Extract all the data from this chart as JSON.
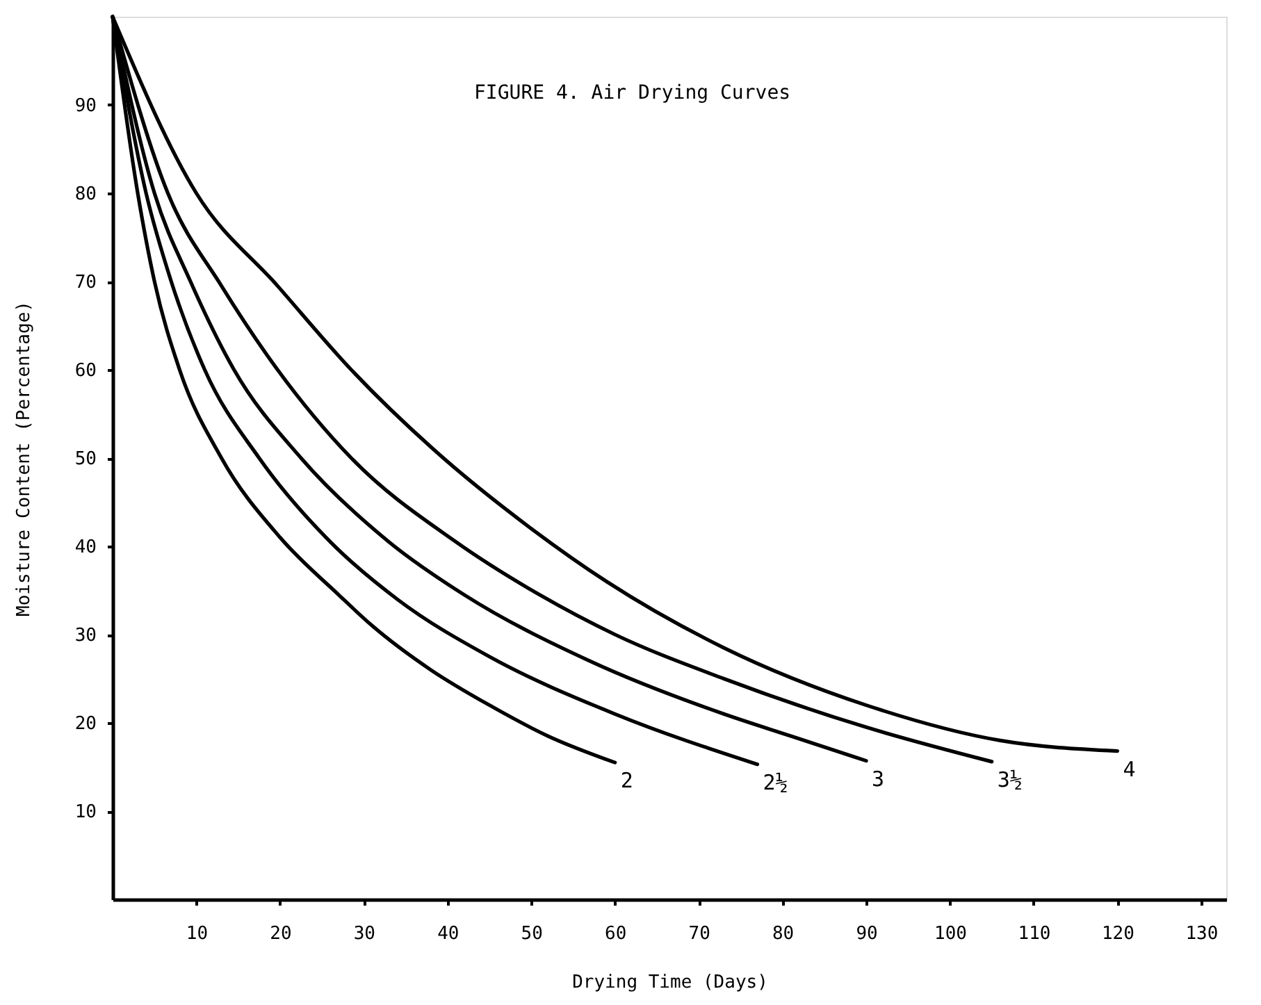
{
  "chart_data": {
    "type": "line",
    "title": "FIGURE 4.  Air Drying Curves",
    "xlabel": "Drying Time (Days)",
    "ylabel": "Moisture Content (Percentage)",
    "xlim": [
      0,
      133
    ],
    "xticks": [
      10,
      20,
      30,
      40,
      50,
      60,
      70,
      80,
      90,
      100,
      110,
      120,
      130
    ],
    "ylim": [
      0,
      100
    ],
    "yticks": [
      10,
      20,
      30,
      40,
      50,
      60,
      70,
      80,
      90
    ],
    "grid": false,
    "legend": false,
    "marker": "none",
    "line_style": "solid",
    "series": [
      {
        "name": "2",
        "color": "#000000",
        "x": [
          0,
          3,
          5,
          8,
          13,
          20,
          27,
          31,
          38,
          45,
          52,
          60
        ],
        "values": [
          100,
          80,
          70,
          60,
          50,
          41,
          34.5,
          31,
          26,
          22,
          18.5,
          15.5
        ]
      },
      {
        "name": "2½",
        "color": "#000000",
        "x": [
          0,
          4,
          7,
          11,
          17.5,
          26,
          34,
          45,
          60,
          77
        ],
        "values": [
          100,
          80,
          70,
          60,
          50,
          40.5,
          34,
          27.5,
          21,
          15.3
        ]
      },
      {
        "name": "3",
        "color": "#000000",
        "x": [
          0,
          5,
          9.3,
          14.5,
          22.5,
          33,
          42,
          57,
          73,
          81,
          90
        ],
        "values": [
          100,
          80,
          70,
          60,
          50,
          40.5,
          34.5,
          27,
          21,
          18.5,
          15.7
        ]
      },
      {
        "name": "3½",
        "color": "#000000",
        "x": [
          0,
          6.6,
          13,
          19.7,
          28.5,
          41,
          51,
          60,
          73,
          90,
          105
        ],
        "values": [
          100,
          80,
          69.5,
          60,
          50,
          40.5,
          34.5,
          30,
          25,
          19.5,
          15.6
        ]
      },
      {
        "name": "4",
        "color": "#000000",
        "x": [
          0,
          10,
          19.7,
          28.5,
          38.3,
          50,
          59,
          73,
          90,
          106,
          120
        ],
        "values": [
          100,
          80,
          69.5,
          60,
          51,
          42,
          36,
          28.5,
          22,
          18,
          16.8
        ]
      }
    ]
  }
}
